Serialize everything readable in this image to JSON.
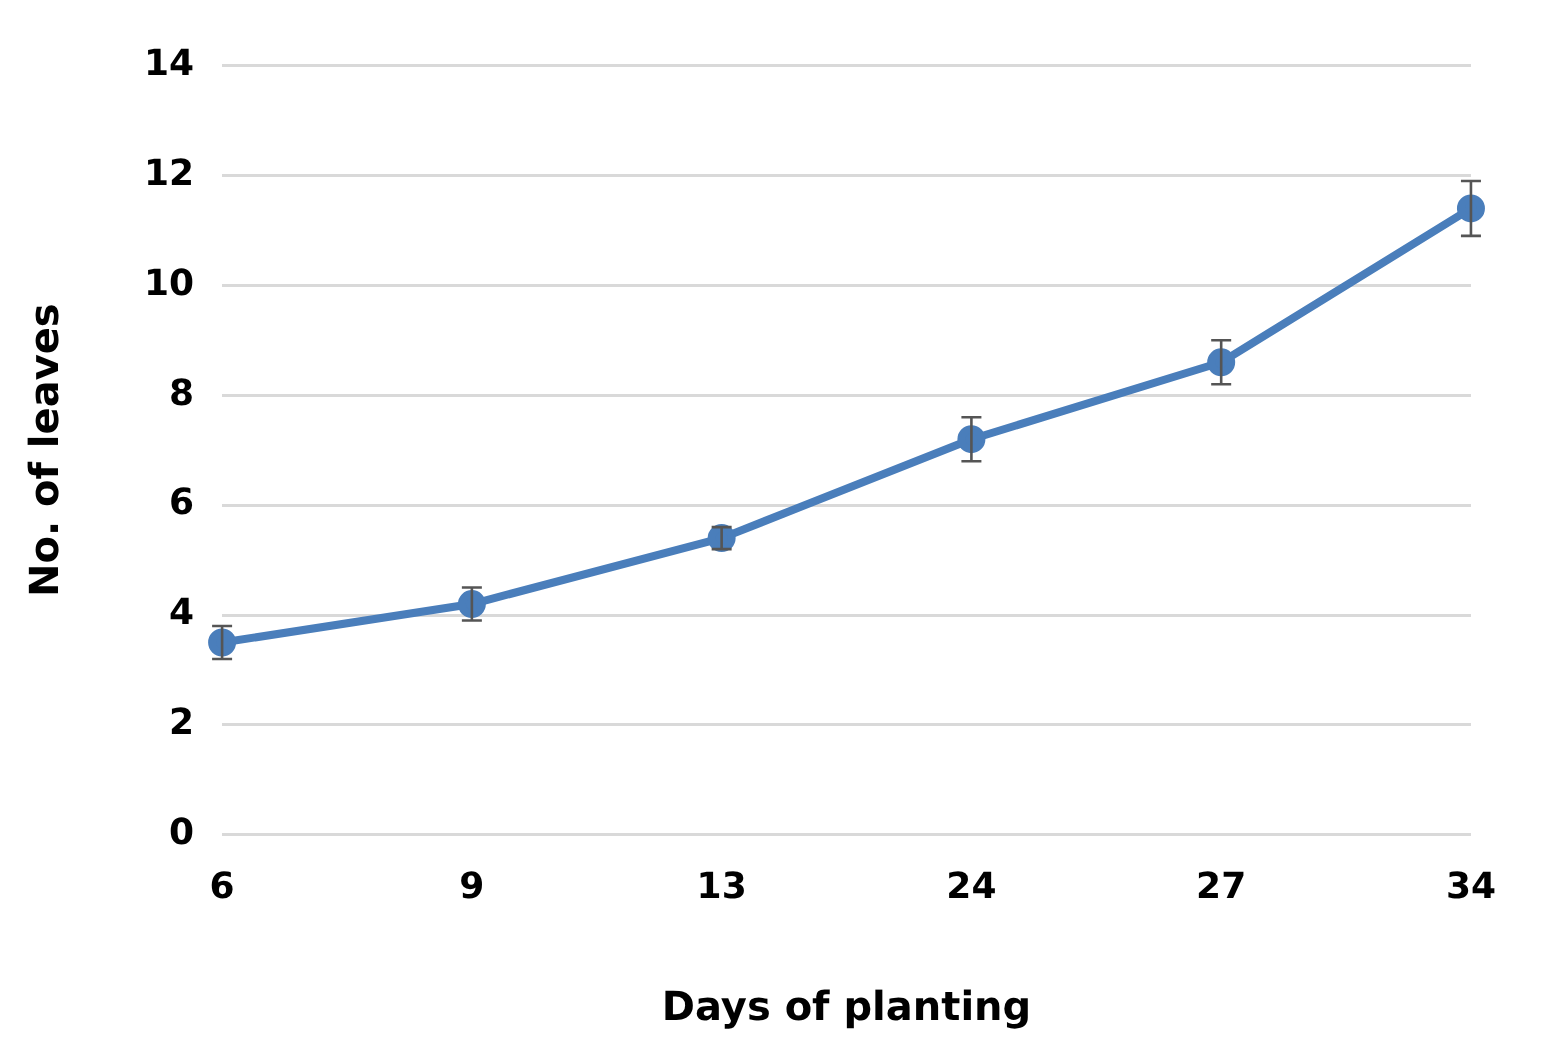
{
  "chart_data": {
    "type": "line",
    "xlabel": "Days of planting",
    "ylabel": "No. of leaves",
    "categories": [
      "6",
      "9",
      "13",
      "24",
      "27",
      "34"
    ],
    "series": [
      {
        "color": "#4a7ebb",
        "values": [
          3.5,
          4.2,
          5.4,
          7.2,
          8.6,
          11.4
        ],
        "errors": [
          0.3,
          0.3,
          0.2,
          0.4,
          0.4,
          0.5
        ]
      }
    ],
    "ylim": [
      0,
      14
    ],
    "yticks": [
      0,
      2,
      4,
      6,
      8,
      10,
      12,
      14
    ],
    "grid": "y",
    "legend": false,
    "marker": "circle",
    "line_style": "solid"
  }
}
